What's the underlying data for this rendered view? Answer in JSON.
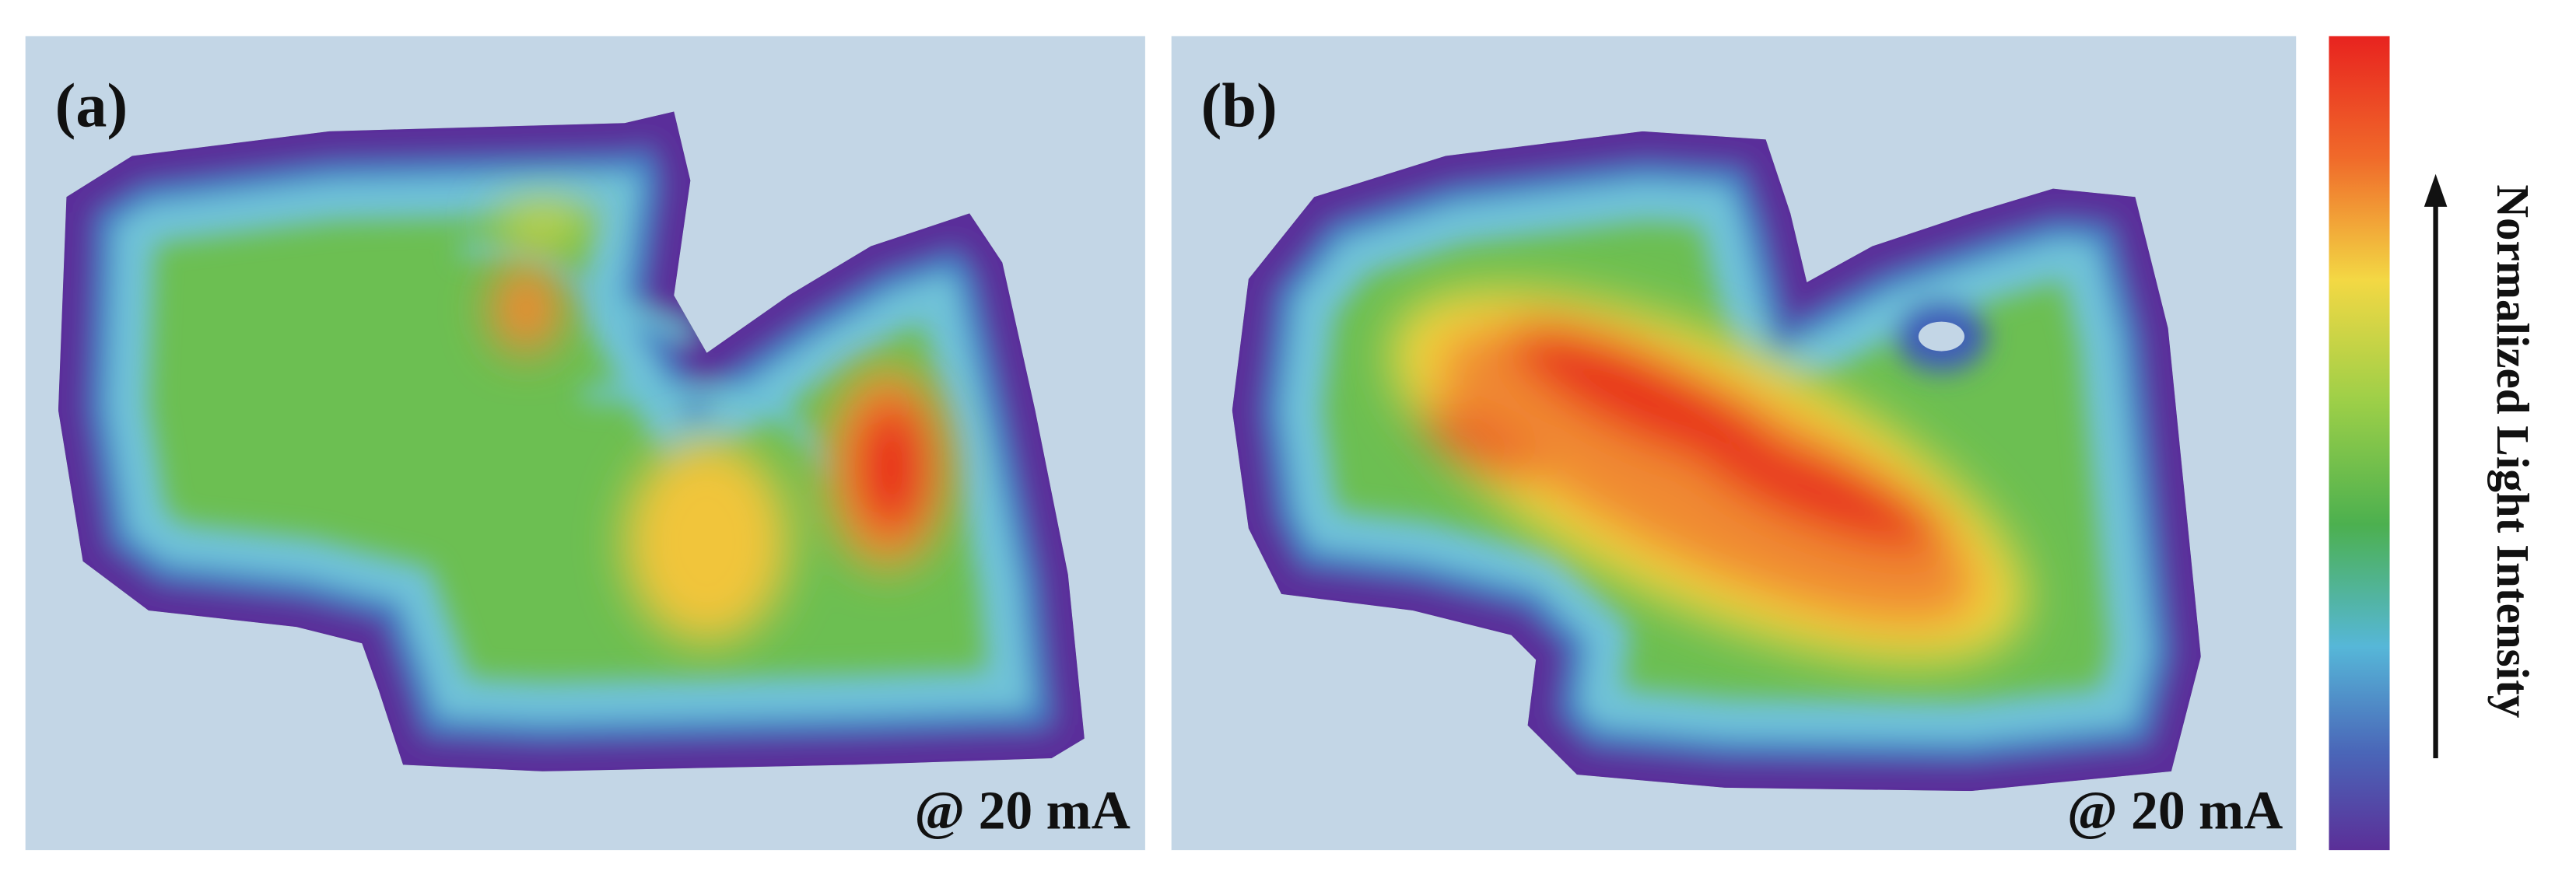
{
  "panels": [
    {
      "label": "(a)",
      "annotation": "@ 20 mA"
    },
    {
      "label": "(b)",
      "annotation": "@ 20 mA"
    }
  ],
  "colorbar": {
    "title": "Normalized Light Intensity"
  }
}
